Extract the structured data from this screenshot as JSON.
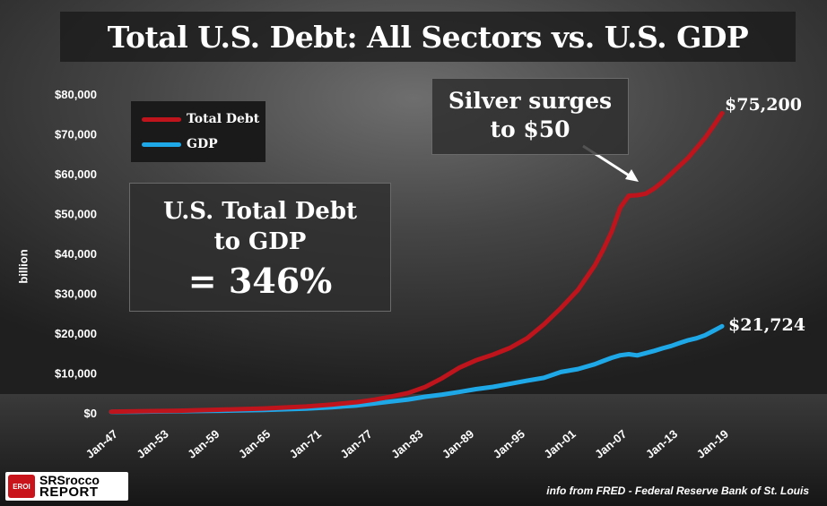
{
  "title": "Total U.S. Debt: All Sectors vs. U.S. GDP",
  "ylabel": "billion",
  "legend": [
    {
      "label": "Total  Debt",
      "color": "#c0141c"
    },
    {
      "label": "GDP",
      "color": "#1fa8e8"
    }
  ],
  "ratio_box": {
    "line1": "U.S. Total Debt",
    "line2": "to GDP",
    "line3": "= 346%"
  },
  "annotation": {
    "line1": "Silver surges",
    "line2": "to $50"
  },
  "end_labels": {
    "debt": "$75,200",
    "gdp": "$21,724"
  },
  "source": "info from FRED - Federal Reserve Bank of St. Louis",
  "logo": {
    "badge": "EROI",
    "line1": "SRSrocco",
    "line2": "REPORT"
  },
  "chart_data": {
    "type": "line",
    "title": "Total U.S. Debt: All Sectors vs. U.S. GDP",
    "xlabel": "",
    "ylabel": "billion",
    "ylim": [
      0,
      80000
    ],
    "y_ticks": [
      0,
      10000,
      20000,
      30000,
      40000,
      50000,
      60000,
      70000,
      80000
    ],
    "y_tick_labels": [
      "$0",
      "$10,000",
      "$20,000",
      "$30,000",
      "$40,000",
      "$50,000",
      "$60,000",
      "$70,000",
      "$80,000"
    ],
    "x_ticks": [
      "Jan-47",
      "Jan-53",
      "Jan-59",
      "Jan-65",
      "Jan-71",
      "Jan-77",
      "Jan-83",
      "Jan-89",
      "Jan-95",
      "Jan-01",
      "Jan-07",
      "Jan-13",
      "Jan-19"
    ],
    "x_range": [
      1947,
      2019
    ],
    "grid": false,
    "legend_position": "top-left",
    "series": [
      {
        "name": "Total  Debt",
        "color": "#c0141c",
        "x": [
          1947,
          1950,
          1955,
          1960,
          1965,
          1970,
          1973,
          1976,
          1978,
          1980,
          1982,
          1984,
          1986,
          1988,
          1990,
          1992,
          1994,
          1996,
          1998,
          2000,
          2002,
          2004,
          2005,
          2006,
          2007,
          2008,
          2009,
          2010,
          2011,
          2012,
          2013,
          2014,
          2015,
          2016,
          2017,
          2018,
          2019
        ],
        "values": [
          300,
          400,
          550,
          800,
          1100,
          1600,
          2100,
          2700,
          3300,
          4100,
          5000,
          6500,
          8700,
          11300,
          13200,
          14600,
          16300,
          18700,
          22200,
          26300,
          30800,
          37000,
          41000,
          45500,
          51500,
          54500,
          54600,
          55000,
          56300,
          58000,
          60000,
          62000,
          64000,
          66500,
          69000,
          72000,
          75200
        ]
      },
      {
        "name": "GDP",
        "color": "#1fa8e8",
        "x": [
          1947,
          1950,
          1955,
          1960,
          1965,
          1970,
          1973,
          1976,
          1978,
          1980,
          1982,
          1984,
          1986,
          1988,
          1990,
          1992,
          1994,
          1996,
          1998,
          2000,
          2002,
          2004,
          2005,
          2006,
          2007,
          2008,
          2009,
          2010,
          2011,
          2012,
          2013,
          2014,
          2015,
          2016,
          2017,
          2018,
          2019
        ],
        "values": [
          240,
          300,
          420,
          540,
          740,
          1070,
          1420,
          1870,
          2350,
          2860,
          3340,
          4040,
          4580,
          5240,
          5960,
          6520,
          7290,
          8070,
          8790,
          10250,
          10980,
          12210,
          13030,
          13810,
          14450,
          14710,
          14420,
          15000,
          15540,
          16200,
          16780,
          17520,
          18220,
          18710,
          19480,
          20580,
          21724
        ]
      }
    ]
  }
}
